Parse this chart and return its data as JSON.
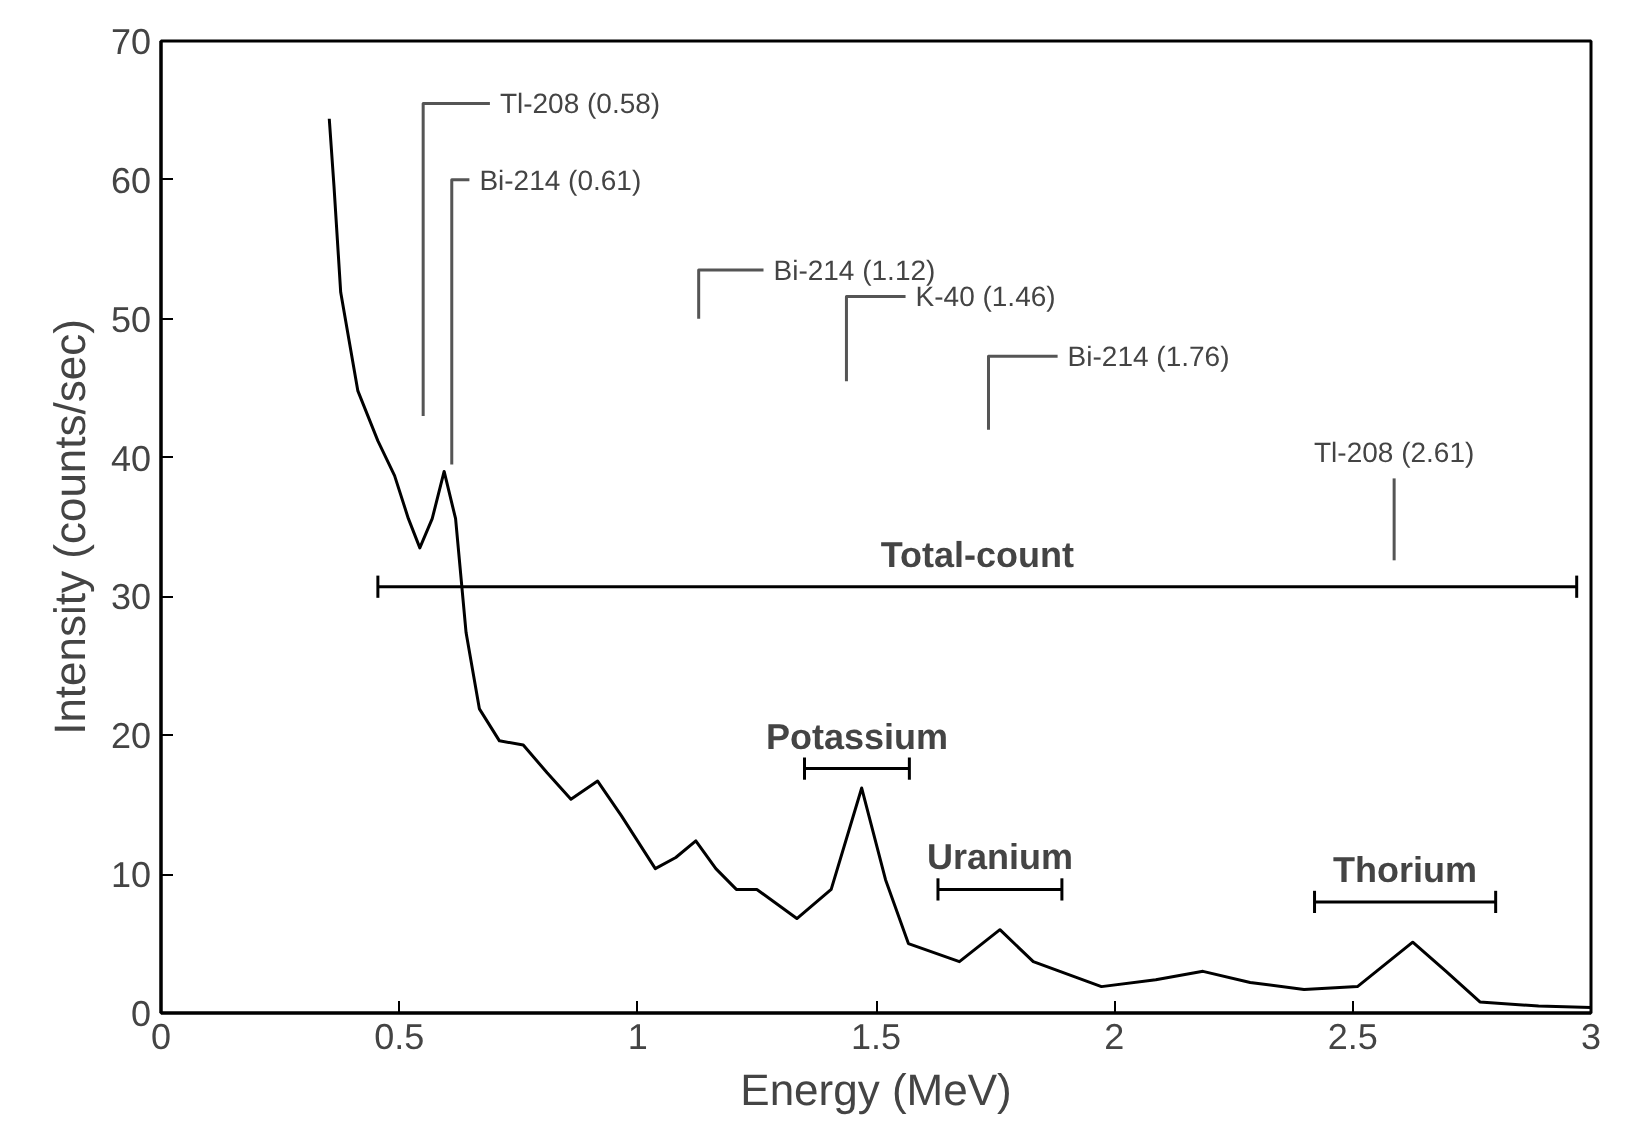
{
  "chart_data": {
    "type": "line",
    "xlabel": "Energy (MeV)",
    "ylabel": "Intensity (counts/sec)",
    "x": [
      0.353,
      0.363,
      0.377,
      0.413,
      0.455,
      0.49,
      0.519,
      0.543,
      0.569,
      0.594,
      0.618,
      0.64,
      0.668,
      0.71,
      0.76,
      0.81,
      0.86,
      0.916,
      0.966,
      1.037,
      1.08,
      1.122,
      1.164,
      1.207,
      1.25,
      1.334,
      1.406,
      1.47,
      1.52,
      1.568,
      1.675,
      1.76,
      1.83,
      1.973,
      2.087,
      2.186,
      2.285,
      2.398,
      2.51,
      2.626,
      2.696,
      2.767,
      2.89,
      3.0
    ],
    "series": [
      {
        "color": "#000000",
        "values": [
          64.4,
          59.5,
          51.9,
          44.8,
          41.2,
          38.7,
          35.6,
          33.5,
          35.6,
          39.0,
          35.6,
          27.4,
          21.9,
          19.6,
          19.3,
          17.3,
          15.4,
          16.7,
          14.2,
          10.4,
          11.2,
          12.4,
          10.4,
          8.9,
          8.9,
          6.8,
          8.9,
          16.2,
          9.6,
          5.0,
          3.7,
          6.0,
          3.7,
          1.9,
          2.4,
          3.0,
          2.2,
          1.7,
          1.9,
          5.1,
          3.0,
          0.8,
          0.5,
          0.4
        ]
      },
      {
        "name": "Total-count",
        "color": "#000000",
        "x": [
          0.455,
          2.97
        ],
        "values": [
          30.7,
          30.7
        ],
        "errors": [
          0.8,
          0.8
        ]
      },
      {
        "name": "Potassium",
        "color": "#000000",
        "x": [
          1.35,
          1.57
        ],
        "values": [
          17.6,
          17.6
        ],
        "errors": [
          0.8,
          0.8
        ]
      },
      {
        "name": "Uranium",
        "color": "#000000",
        "x": [
          1.63,
          1.89
        ],
        "values": [
          8.9,
          8.9
        ],
        "errors": [
          0.8,
          0.8
        ]
      },
      {
        "name": "Thorium",
        "color": "#000000",
        "x": [
          2.42,
          2.8
        ],
        "values": [
          8.0,
          8.0
        ],
        "errors": [
          0.8,
          0.8
        ]
      },
      {
        "name": "Tl-208 (0.58)",
        "color": "#555555",
        "x": [
          0.55,
          0.55,
          0.69
        ],
        "values": [
          43,
          65.5,
          65.5
        ]
      },
      {
        "name": "Bi-214 (0.61)",
        "color": "#555555",
        "x": [
          0.61,
          0.61,
          0.647
        ],
        "values": [
          39.5,
          60,
          60
        ]
      },
      {
        "name": "Bi-214 (1.12)",
        "color": "#555555",
        "x": [
          1.128,
          1.128,
          1.264
        ],
        "values": [
          50,
          53.5,
          53.5
        ]
      },
      {
        "name": "K-40 (1.46)",
        "color": "#555555",
        "x": [
          1.438,
          1.438,
          1.562
        ],
        "values": [
          45.5,
          51.6,
          51.6
        ]
      },
      {
        "name": "Bi-214 (1.76)",
        "color": "#555555",
        "x": [
          1.736,
          1.736,
          1.881
        ],
        "values": [
          42,
          47.3,
          47.3
        ]
      },
      {
        "name": "Tl-208 (2.61)",
        "color": "#555555",
        "x": [
          2.587,
          2.587
        ],
        "values": [
          32.6,
          38.5
        ]
      }
    ],
    "xlim": [
      0,
      3
    ],
    "ylim": [
      0,
      70
    ],
    "xticks": [
      0,
      0.5,
      1,
      1.5,
      2,
      2.5,
      3
    ],
    "yticks": [
      0,
      10,
      20,
      30,
      40,
      50,
      60,
      70
    ],
    "grid": false,
    "marker": "none",
    "line_style": "solid",
    "legend": false
  }
}
